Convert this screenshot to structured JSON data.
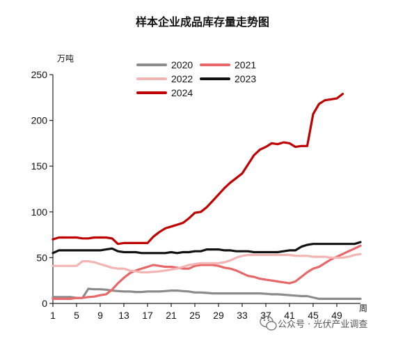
{
  "chart_data": {
    "type": "line",
    "title": "样本企业成品库存量走势图",
    "ylabel_unit": "万吨",
    "xlabel_unit": "周",
    "ylim": [
      0,
      250
    ],
    "xlim": [
      1,
      53
    ],
    "yticks": [
      0,
      50,
      100,
      150,
      200,
      250
    ],
    "xticks": [
      1,
      5,
      9,
      13,
      17,
      21,
      25,
      29,
      33,
      37,
      41,
      45,
      49
    ],
    "grid": false,
    "legend": "top-center",
    "series": [
      {
        "name": "2020",
        "color": "#8c8c8c",
        "x": [
          1,
          2,
          3,
          4,
          5,
          6,
          7,
          8,
          9,
          10,
          11,
          12,
          13,
          14,
          15,
          16,
          17,
          18,
          19,
          20,
          21,
          22,
          23,
          24,
          25,
          26,
          27,
          28,
          29,
          30,
          31,
          32,
          33,
          34,
          35,
          36,
          37,
          38,
          39,
          40,
          41,
          42,
          43,
          44,
          45,
          46,
          47,
          48,
          49,
          50,
          51,
          52,
          53
        ],
        "values": [
          7,
          7,
          7,
          7,
          6,
          6,
          16,
          15.5,
          15.5,
          15,
          14,
          13.5,
          13,
          13,
          12.5,
          12.5,
          13,
          13,
          13,
          13.5,
          14,
          14,
          13.5,
          13,
          12,
          12,
          11.5,
          11,
          11,
          11,
          11,
          11,
          11,
          11,
          11,
          11,
          10.5,
          10,
          10,
          9.5,
          9,
          8.5,
          8,
          8,
          6.5,
          5,
          5,
          5,
          5,
          5,
          5,
          5,
          5
        ]
      },
      {
        "name": "2021",
        "color": "#e8686a",
        "x": [
          1,
          2,
          3,
          4,
          5,
          6,
          7,
          8,
          9,
          10,
          11,
          12,
          13,
          14,
          15,
          16,
          17,
          18,
          19,
          20,
          21,
          22,
          23,
          24,
          25,
          26,
          27,
          28,
          29,
          30,
          31,
          32,
          33,
          34,
          35,
          36,
          37,
          38,
          39,
          40,
          41,
          42,
          43,
          44,
          45,
          46,
          47,
          48,
          49,
          50,
          51,
          52,
          53
        ],
        "values": [
          5,
          5,
          5,
          5,
          6,
          6,
          7,
          7.5,
          9,
          10,
          15,
          22,
          28,
          33,
          36,
          38,
          40,
          42,
          41,
          40,
          40,
          39,
          38,
          38,
          41,
          42,
          42,
          42,
          41,
          39,
          38,
          36,
          33,
          30,
          29,
          27,
          26,
          25,
          24,
          23,
          22,
          24,
          29,
          34,
          38,
          40,
          44,
          48,
          51,
          54,
          57,
          60,
          63
        ]
      },
      {
        "name": "2022",
        "color": "#f2b5b3",
        "x": [
          1,
          2,
          3,
          4,
          5,
          6,
          7,
          8,
          9,
          10,
          11,
          12,
          13,
          14,
          15,
          16,
          17,
          18,
          19,
          20,
          21,
          22,
          23,
          24,
          25,
          26,
          27,
          28,
          29,
          30,
          31,
          32,
          33,
          34,
          35,
          36,
          37,
          38,
          39,
          40,
          41,
          42,
          43,
          44,
          45,
          46,
          47,
          48,
          49,
          50,
          51,
          52,
          53
        ],
        "values": [
          41,
          41,
          41,
          41,
          41,
          46,
          46,
          45,
          43,
          41,
          39,
          38,
          38,
          36,
          35,
          34,
          34,
          34.5,
          35,
          36,
          37,
          38,
          40,
          42,
          43,
          44,
          44,
          44,
          44,
          45,
          47,
          50,
          52,
          53,
          53,
          53,
          53,
          53,
          53,
          53,
          53,
          52,
          52,
          52,
          51,
          51,
          51,
          50,
          50,
          50,
          51,
          53,
          54
        ]
      },
      {
        "name": "2023",
        "color": "#111111",
        "x": [
          1,
          2,
          3,
          4,
          5,
          6,
          7,
          8,
          9,
          10,
          11,
          12,
          13,
          14,
          15,
          16,
          17,
          18,
          19,
          20,
          21,
          22,
          23,
          24,
          25,
          26,
          27,
          28,
          29,
          30,
          31,
          32,
          33,
          34,
          35,
          36,
          37,
          38,
          39,
          40,
          41,
          42,
          43,
          44,
          45,
          46,
          47,
          48,
          49,
          50,
          51,
          52,
          53
        ],
        "values": [
          55,
          58,
          58,
          58,
          58,
          58,
          58,
          58,
          58,
          59,
          60,
          57,
          56,
          56,
          56,
          55,
          55,
          55,
          55,
          55,
          56,
          55,
          56,
          56,
          57,
          57,
          59,
          59,
          59,
          58,
          58,
          57,
          57,
          57,
          56,
          56,
          56,
          56,
          56,
          57,
          58,
          58,
          62,
          64,
          65,
          65,
          65,
          65,
          65,
          65,
          65,
          65,
          67
        ]
      },
      {
        "name": "2024",
        "color": "#c00000",
        "x": [
          1,
          2,
          3,
          4,
          5,
          6,
          7,
          8,
          9,
          10,
          11,
          12,
          13,
          14,
          15,
          16,
          17,
          18,
          19,
          20,
          21,
          22,
          23,
          24,
          25,
          26,
          27,
          28,
          29,
          30,
          31,
          32,
          33,
          34,
          35,
          36,
          37,
          38,
          39,
          40,
          41,
          42,
          43,
          44,
          45,
          46,
          47,
          48,
          49,
          50
        ],
        "values": [
          70,
          72,
          72,
          72,
          72,
          71,
          71,
          72,
          72,
          72,
          71,
          65,
          66,
          66,
          66,
          66,
          66,
          73,
          78,
          82,
          84,
          86,
          88,
          93,
          99,
          100,
          105,
          112,
          119,
          126,
          132,
          137,
          142,
          152,
          162,
          168,
          171,
          175,
          174,
          176,
          175,
          171,
          172,
          172,
          207,
          218,
          222,
          223,
          224,
          229
        ]
      }
    ],
    "watermark": "公众号 · 光伏产业调查"
  }
}
